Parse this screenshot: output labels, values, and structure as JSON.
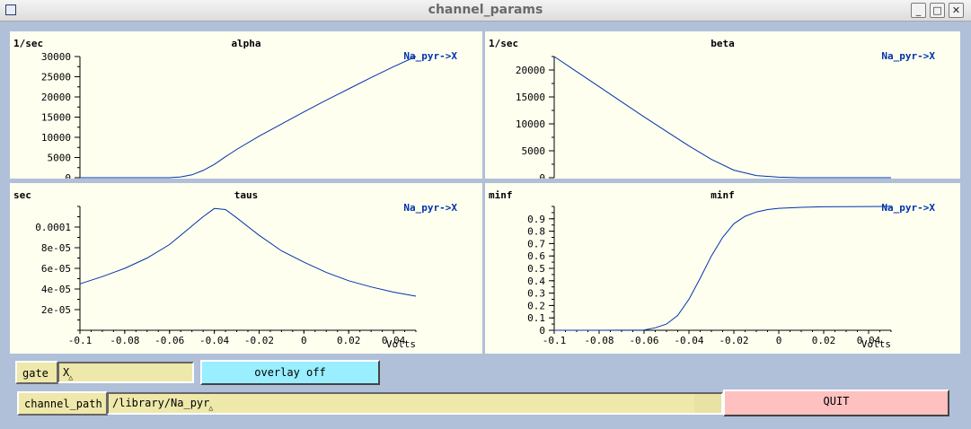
{
  "window": {
    "title": "channel_params",
    "minimize_glyph": "_",
    "maximize_glyph": "□",
    "close_glyph": "✕"
  },
  "graphs": [
    {
      "title": "alpha",
      "yunits": "1/sec",
      "overlay_label": "Na_pyr->X",
      "xlabel": "",
      "ylim": [
        0,
        30000
      ],
      "yticks": [
        "0",
        "5000",
        "10000",
        "15000",
        "20000",
        "25000",
        "30000"
      ],
      "show_xaxis": false
    },
    {
      "title": "beta",
      "yunits": "1/sec",
      "overlay_label": "Na_pyr->X",
      "xlabel": "",
      "ylim": [
        0,
        22500
      ],
      "yticks": [
        "0",
        "5000",
        "10000",
        "15000",
        "20000"
      ],
      "show_xaxis": false
    },
    {
      "title": "taus",
      "yunits": "sec",
      "overlay_label": "Na_pyr->X",
      "xlabel": "Volts",
      "ylim": [
        0,
        0.00012
      ],
      "yticks": [
        "2e-05",
        "4e-05",
        "6e-05",
        "8e-05",
        "0.0001"
      ],
      "xticks": [
        "-0.1",
        "-0.08",
        "-0.06",
        "-0.04",
        "-0.02",
        "0",
        "0.02",
        "0.04"
      ],
      "show_xaxis": true
    },
    {
      "title": "minf",
      "yunits": "minf",
      "overlay_label": "Na_pyr->X",
      "xlabel": "Volts",
      "ylim": [
        0,
        1
      ],
      "yticks": [
        "0",
        "0.1",
        "0.2",
        "0.3",
        "0.4",
        "0.5",
        "0.6",
        "0.7",
        "0.8",
        "0.9"
      ],
      "xticks": [
        "-0.1",
        "-0.08",
        "-0.06",
        "-0.04",
        "-0.02",
        "0",
        "0.02",
        "0.04"
      ],
      "show_xaxis": true
    }
  ],
  "chart_data": [
    {
      "type": "line",
      "title": "alpha",
      "ylabel": "1/sec",
      "xlim": [
        -0.1,
        0.05
      ],
      "ylim": [
        0,
        30000
      ],
      "series": [
        {
          "name": "Na_pyr->X",
          "x": [
            -0.1,
            -0.09,
            -0.08,
            -0.07,
            -0.06,
            -0.055,
            -0.05,
            -0.045,
            -0.04,
            -0.035,
            -0.03,
            -0.02,
            -0.01,
            0,
            0.01,
            0.02,
            0.03,
            0.04,
            0.05
          ],
          "values": [
            0,
            0,
            0,
            0,
            0,
            200,
            700,
            1800,
            3300,
            5200,
            7000,
            10300,
            13300,
            16300,
            19200,
            22000,
            24800,
            27500,
            30000
          ]
        }
      ]
    },
    {
      "type": "line",
      "title": "beta",
      "ylabel": "1/sec",
      "xlim": [
        -0.1,
        0.05
      ],
      "ylim": [
        0,
        22500
      ],
      "series": [
        {
          "name": "Na_pyr->X",
          "x": [
            -0.1,
            -0.09,
            -0.08,
            -0.07,
            -0.06,
            -0.05,
            -0.04,
            -0.03,
            -0.02,
            -0.01,
            0,
            0.01,
            0.02,
            0.03,
            0.04,
            0.05
          ],
          "values": [
            22500,
            19700,
            16900,
            14100,
            11300,
            8600,
            5900,
            3400,
            1400,
            400,
            100,
            0,
            0,
            0,
            0,
            0
          ]
        }
      ]
    },
    {
      "type": "line",
      "title": "taus",
      "ylabel": "sec",
      "xlabel": "Volts",
      "xlim": [
        -0.1,
        0.05
      ],
      "ylim": [
        0,
        0.00012
      ],
      "series": [
        {
          "name": "Na_pyr->X",
          "x": [
            -0.1,
            -0.09,
            -0.08,
            -0.07,
            -0.06,
            -0.05,
            -0.045,
            -0.04,
            -0.035,
            -0.03,
            -0.02,
            -0.01,
            0,
            0.01,
            0.02,
            0.03,
            0.04,
            0.05
          ],
          "values": [
            4.5e-05,
            5.2e-05,
            6e-05,
            7e-05,
            8.3e-05,
            0.000101,
            0.00011,
            0.000118,
            0.000117,
            0.000109,
            9.2e-05,
            7.7e-05,
            6.6e-05,
            5.6e-05,
            4.8e-05,
            4.2e-05,
            3.7e-05,
            3.3e-05
          ]
        }
      ]
    },
    {
      "type": "line",
      "title": "minf",
      "ylabel": "minf",
      "xlabel": "Volts",
      "xlim": [
        -0.1,
        0.05
      ],
      "ylim": [
        0,
        1
      ],
      "series": [
        {
          "name": "Na_pyr->X",
          "x": [
            -0.1,
            -0.08,
            -0.06,
            -0.055,
            -0.05,
            -0.045,
            -0.04,
            -0.035,
            -0.03,
            -0.025,
            -0.02,
            -0.015,
            -0.01,
            -0.005,
            0,
            0.01,
            0.02,
            0.03,
            0.04,
            0.05
          ],
          "values": [
            0,
            0,
            0.002,
            0.02,
            0.05,
            0.12,
            0.25,
            0.42,
            0.6,
            0.75,
            0.86,
            0.92,
            0.955,
            0.975,
            0.985,
            0.993,
            0.997,
            0.998,
            0.999,
            1.0
          ]
        }
      ]
    }
  ],
  "controls": {
    "gate_label": "gate",
    "gate_value": "X",
    "overlay_label": "overlay off",
    "channel_path_label": "channel_path",
    "channel_path_value": "/library/Na_pyr",
    "quit_label": "QUIT",
    "overlay_color": "#99eeff",
    "quit_color": "#ffc0c0"
  },
  "colors": {
    "plot_bg": "#fffff0",
    "curve": "#0033aa",
    "overlay_text": "#0033aa"
  }
}
